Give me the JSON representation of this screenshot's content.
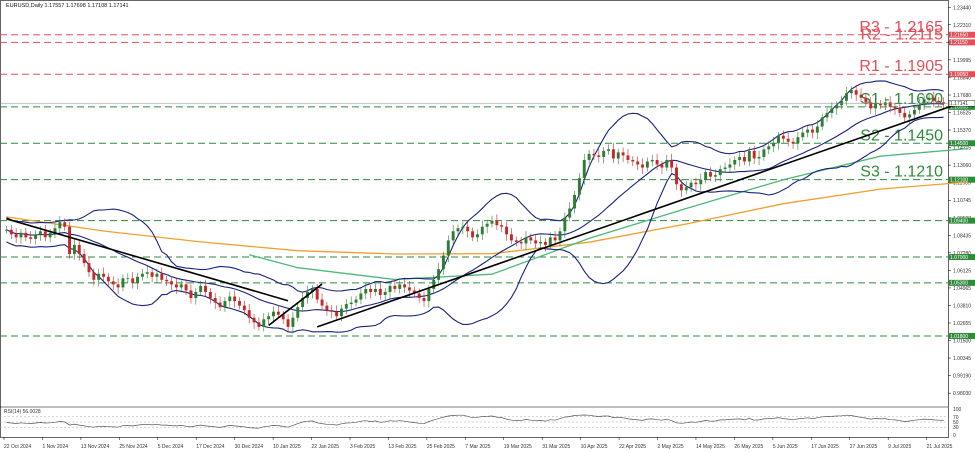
{
  "chart_data": {
    "type": "candlestick",
    "title": "EURUSD,Daily  1.17557 1.17698 1.17108 1.17141",
    "y_ticks": [
      "1.23440",
      "1.22310",
      "1.21150",
      "1.19995",
      "1.18840",
      "1.17680",
      "1.16525",
      "1.15370",
      "1.14215",
      "1.13060",
      "1.11905",
      "1.10745",
      "1.09590",
      "1.08435",
      "1.07280",
      "1.06125",
      "1.04965",
      "1.03810",
      "1.02655",
      "1.01500",
      "1.00345",
      "0.99190",
      "0.98030"
    ],
    "ylim": [
      0.9725,
      1.2381
    ],
    "x_ticks": [
      "22 Oct 2024",
      "1 Nov 2024",
      "13 Nov 2024",
      "25 Nov 2024",
      "5 Dec 2024",
      "17 Dec 2024",
      "30 Dec 2024",
      "10 Jan 2025",
      "22 Jan 2025",
      "3 Feb 2025",
      "13 Feb 2025",
      "25 Feb 2025",
      "7 Mar 2025",
      "19 Mar 2025",
      "31 Mar 2025",
      "10 Apr 2025",
      "22 Apr 2025",
      "2 May 2025",
      "14 May 2025",
      "26 May 2025",
      "5 Jun 2025",
      "17 Jun 2025",
      "27 Jun 2025",
      "9 Jul 2025",
      "21 Jul 2025"
    ],
    "levels": [
      {
        "label": "R3 - 1.2165",
        "value": 1.2165,
        "tag": "1.21650",
        "kind": "resistance"
      },
      {
        "label": "R2 - 1.2115",
        "value": 1.2115,
        "tag": "1.21150",
        "kind": "resistance"
      },
      {
        "label": "R1 - 1.1905",
        "value": 1.1905,
        "tag": "1.19050",
        "kind": "resistance"
      },
      {
        "label": "S1 - 1.1690",
        "value": 1.169,
        "tag": "1.16900",
        "kind": "support"
      },
      {
        "label": "S2 - 1.1450",
        "value": 1.145,
        "tag": "1.14500",
        "kind": "support"
      },
      {
        "label": "S3 - 1.1210",
        "value": 1.121,
        "tag": "1.12100",
        "kind": "support"
      },
      {
        "label": "",
        "value": 1.094,
        "tag": "1.09400",
        "kind": "support"
      },
      {
        "label": "",
        "value": 1.07,
        "tag": "1.07000",
        "kind": "support"
      },
      {
        "label": "",
        "value": 1.053,
        "tag": "1.05300",
        "kind": "support"
      },
      {
        "label": "",
        "value": 1.018,
        "tag": "1.01800",
        "kind": "support"
      }
    ],
    "price_tag": "1.17141",
    "close_series": [
      1.088,
      1.085,
      1.083,
      1.086,
      1.083,
      1.082,
      1.085,
      1.087,
      1.083,
      1.086,
      1.089,
      1.093,
      1.09,
      1.072,
      1.078,
      1.072,
      1.066,
      1.06,
      1.055,
      1.059,
      1.057,
      1.054,
      1.052,
      1.05,
      1.056,
      1.056,
      1.053,
      1.057,
      1.059,
      1.06,
      1.057,
      1.059,
      1.055,
      1.054,
      1.052,
      1.05,
      1.052,
      1.048,
      1.043,
      1.047,
      1.051,
      1.047,
      1.043,
      1.04,
      1.037,
      1.041,
      1.044,
      1.041,
      1.038,
      1.035,
      1.03,
      1.027,
      1.024,
      1.029,
      1.031,
      1.034,
      1.032,
      1.029,
      1.024,
      1.03,
      1.037,
      1.043,
      1.047,
      1.049,
      1.042,
      1.038,
      1.035,
      1.034,
      1.031,
      1.036,
      1.039,
      1.04,
      1.042,
      1.046,
      1.049,
      1.047,
      1.049,
      1.045,
      1.047,
      1.051,
      1.049,
      1.052,
      1.05,
      1.048,
      1.046,
      1.043,
      1.041,
      1.049,
      1.055,
      1.062,
      1.071,
      1.081,
      1.087,
      1.089,
      1.09,
      1.087,
      1.083,
      1.085,
      1.09,
      1.092,
      1.094,
      1.091,
      1.09,
      1.085,
      1.081,
      1.08,
      1.079,
      1.083,
      1.081,
      1.079,
      1.08,
      1.078,
      1.083,
      1.081,
      1.087,
      1.096,
      1.102,
      1.111,
      1.122,
      1.134,
      1.138,
      1.137,
      1.136,
      1.14,
      1.141,
      1.135,
      1.139,
      1.137,
      1.134,
      1.133,
      1.131,
      1.129,
      1.133,
      1.134,
      1.131,
      1.129,
      1.134,
      1.129,
      1.118,
      1.114,
      1.116,
      1.119,
      1.118,
      1.121,
      1.126,
      1.123,
      1.124,
      1.128,
      1.129,
      1.131,
      1.134,
      1.136,
      1.133,
      1.14,
      1.135,
      1.136,
      1.141,
      1.143,
      1.145,
      1.15,
      1.148,
      1.146,
      1.145,
      1.149,
      1.152,
      1.154,
      1.152,
      1.156,
      1.162,
      1.165,
      1.168,
      1.17,
      1.173,
      1.178,
      1.18,
      1.177,
      1.175,
      1.172,
      1.168,
      1.171,
      1.17,
      1.172,
      1.169,
      1.168,
      1.165,
      1.162,
      1.164,
      1.167,
      1.17,
      1.174,
      1.175,
      1.173,
      1.172,
      1.171
    ],
    "moving_averages": [
      {
        "color": "#f0a030",
        "values": [
          [
            0,
            1.0965
          ],
          [
            20,
            1.0872
          ],
          [
            40,
            1.08
          ],
          [
            60,
            1.0742
          ],
          [
            80,
            1.072
          ],
          [
            100,
            1.0722
          ],
          [
            120,
            1.0798
          ],
          [
            140,
            1.0918
          ],
          [
            160,
            1.1052
          ],
          [
            180,
            1.1148
          ],
          [
            198,
            1.1195
          ]
        ]
      },
      {
        "color": "#4fb87a",
        "values": [
          [
            50,
            1.0715
          ],
          [
            60,
            1.063
          ],
          [
            80,
            1.0552
          ],
          [
            100,
            1.0587
          ],
          [
            120,
            1.0823
          ],
          [
            140,
            1.102
          ],
          [
            160,
            1.121
          ],
          [
            180,
            1.1365
          ],
          [
            198,
            1.1415
          ]
        ]
      }
    ],
    "trendlines": [
      {
        "from": [
          0,
          1.0952
        ],
        "to": [
          58,
          1.0412
        ]
      },
      {
        "from": [
          64,
          1.024
        ],
        "to": [
          196,
          1.171
        ]
      },
      {
        "from": [
          54,
          1.025
        ],
        "to": [
          65,
          1.0522
        ]
      }
    ],
    "rsi": {
      "label": "RSI(14) 56.0028",
      "ticks": [
        "100",
        "70",
        "50",
        "30",
        "0"
      ],
      "values": [
        48,
        46,
        44,
        47,
        45,
        44,
        46,
        48,
        46,
        47,
        49,
        52,
        50,
        38,
        42,
        38,
        35,
        32,
        30,
        34,
        33,
        32,
        31,
        30,
        36,
        36,
        35,
        38,
        40,
        41,
        39,
        41,
        38,
        38,
        36,
        35,
        37,
        34,
        31,
        35,
        38,
        35,
        33,
        31,
        29,
        33,
        37,
        35,
        33,
        31,
        28,
        27,
        26,
        32,
        34,
        37,
        36,
        33,
        30,
        37,
        44,
        50,
        53,
        54,
        47,
        44,
        41,
        41,
        38,
        43,
        46,
        47,
        49,
        53,
        55,
        52,
        54,
        49,
        51,
        55,
        53,
        55,
        53,
        50,
        48,
        45,
        43,
        52,
        58,
        63,
        69,
        73,
        75,
        76,
        76,
        72,
        66,
        68,
        71,
        72,
        73,
        69,
        67,
        61,
        57,
        56,
        55,
        60,
        57,
        55,
        56,
        53,
        59,
        57,
        63,
        69,
        71,
        75,
        76,
        77,
        76,
        73,
        71,
        73,
        73,
        67,
        69,
        66,
        62,
        60,
        58,
        56,
        61,
        62,
        59,
        57,
        61,
        55,
        47,
        45,
        47,
        50,
        49,
        52,
        56,
        53,
        54,
        58,
        58,
        60,
        61,
        62,
        58,
        64,
        57,
        58,
        62,
        63,
        64,
        67,
        63,
        61,
        59,
        62,
        64,
        66,
        63,
        66,
        70,
        71,
        72,
        73,
        74,
        76,
        75,
        71,
        68,
        65,
        61,
        64,
        62,
        63,
        59,
        58,
        55,
        52,
        54,
        57,
        59,
        61,
        60,
        58,
        57,
        56
      ]
    }
  }
}
